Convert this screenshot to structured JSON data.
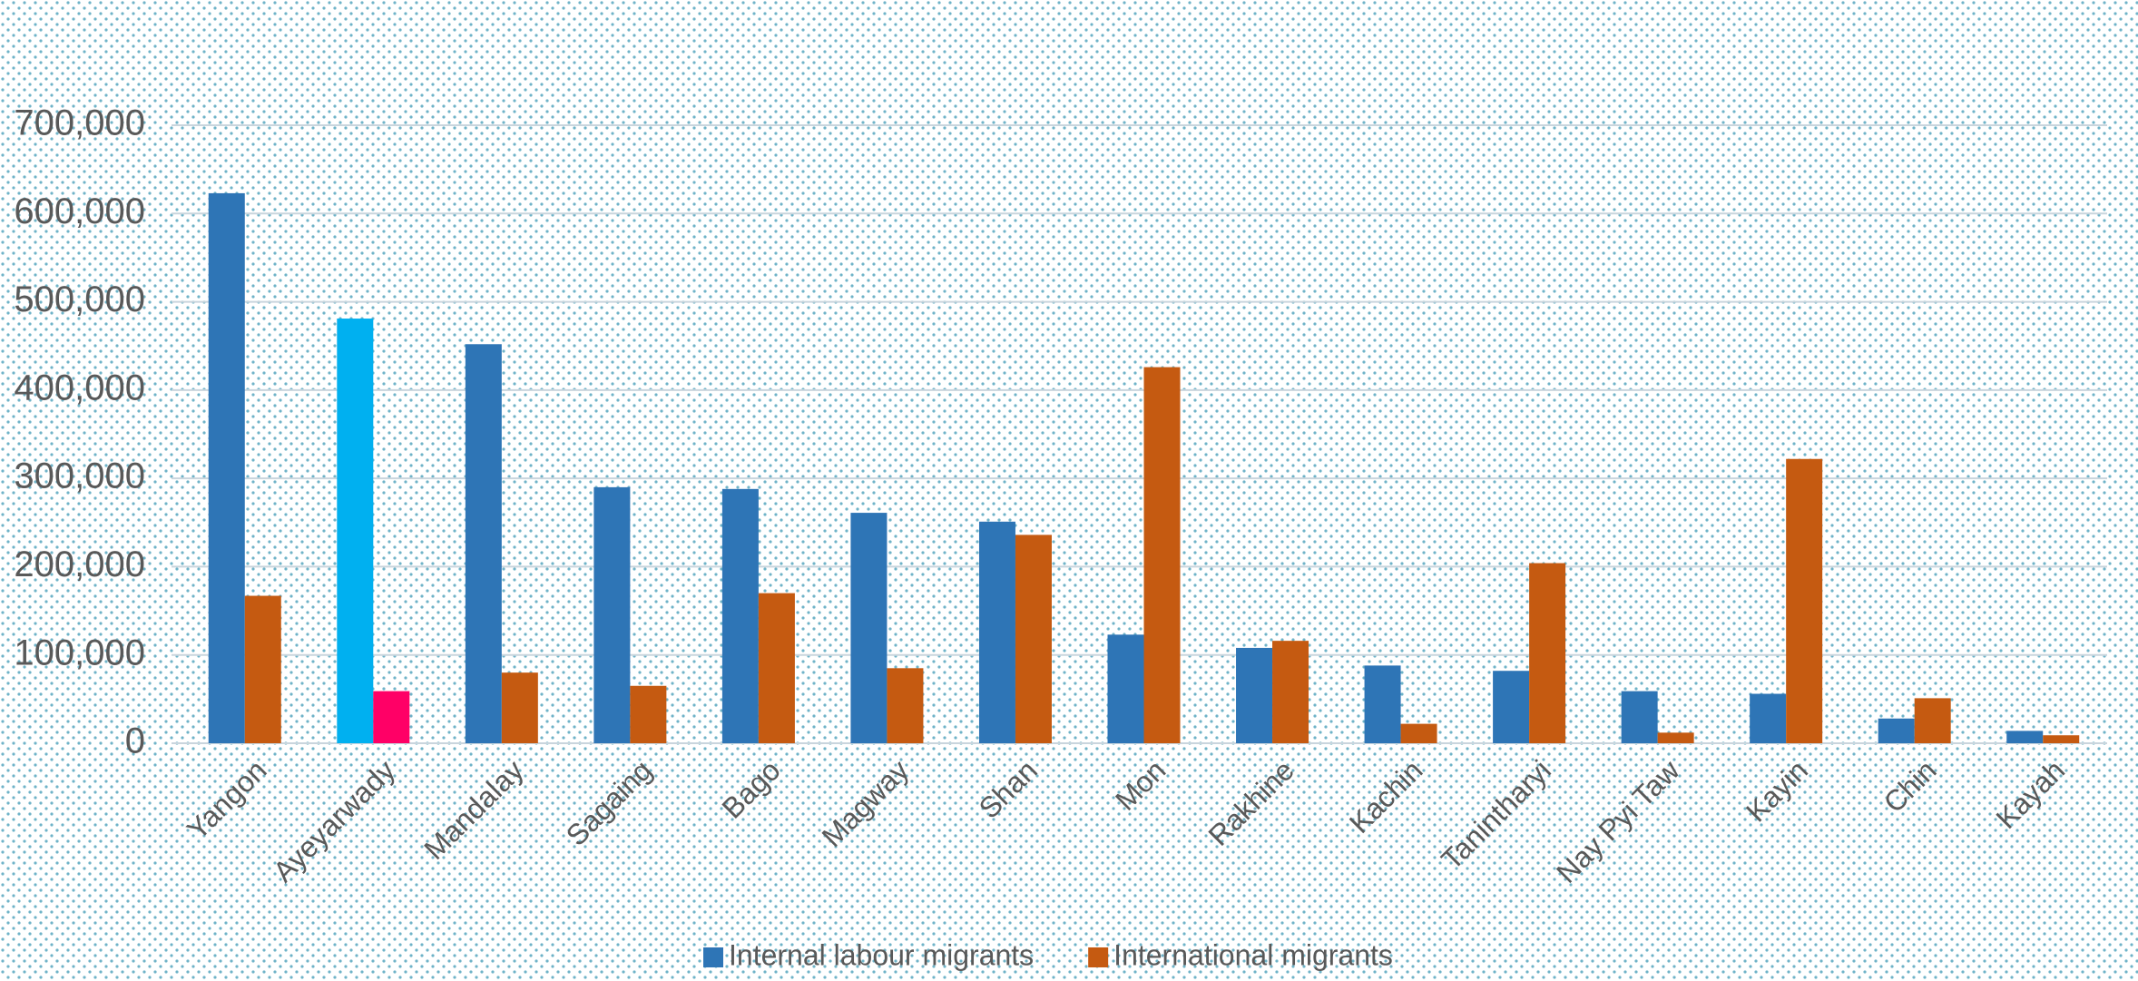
{
  "chart_data": {
    "type": "bar",
    "categories": [
      "Yangon",
      "Ayeyarwady",
      "Mandalay",
      "Sagaing",
      "Bago",
      "Magway",
      "Shan",
      "Mon",
      "Rakhine",
      "Kachin",
      "Tanintharyi",
      "Nay Pyi Taw",
      "Kayin",
      "Chin",
      "Kayah"
    ],
    "series": [
      {
        "name": "Internal labour migrants",
        "color": "#2e75b6",
        "colors": [
          "#2e75b6",
          "#00b0f0",
          "#2e75b6",
          "#2e75b6",
          "#2e75b6",
          "#2e75b6",
          "#2e75b6",
          "#2e75b6",
          "#2e75b6",
          "#2e75b6",
          "#2e75b6",
          "#2e75b6",
          "#2e75b6",
          "#2e75b6",
          "#2e75b6"
        ],
        "values": [
          623000,
          481000,
          452000,
          290000,
          288000,
          261000,
          251000,
          123000,
          108000,
          88000,
          82000,
          59000,
          56000,
          28000,
          14000
        ]
      },
      {
        "name": "International migrants",
        "color": "#c55a11",
        "colors": [
          "#c55a11",
          "#ff0066",
          "#c55a11",
          "#c55a11",
          "#c55a11",
          "#c55a11",
          "#c55a11",
          "#c55a11",
          "#c55a11",
          "#c55a11",
          "#c55a11",
          "#c55a11",
          "#c55a11",
          "#c55a11",
          "#c55a11"
        ],
        "values": [
          167000,
          59000,
          80000,
          65000,
          170000,
          85000,
          236000,
          426000,
          116000,
          22000,
          204000,
          12000,
          322000,
          51000,
          9000
        ]
      }
    ],
    "ylim": [
      0,
      700000
    ],
    "yticks": [
      0,
      {
        "value": 100000,
        "label": "100,000"
      },
      {
        "value": 200000,
        "label": "200,000"
      },
      {
        "value": 300000,
        "label": "300,000"
      },
      {
        "value": 400000,
        "label": "400,000"
      },
      {
        "value": 500000,
        "label": "500,000"
      },
      {
        "value": 600000,
        "label": "600,000"
      },
      {
        "value": 700000,
        "label": "700,000"
      }
    ],
    "grid": true,
    "legend": "bottom"
  }
}
